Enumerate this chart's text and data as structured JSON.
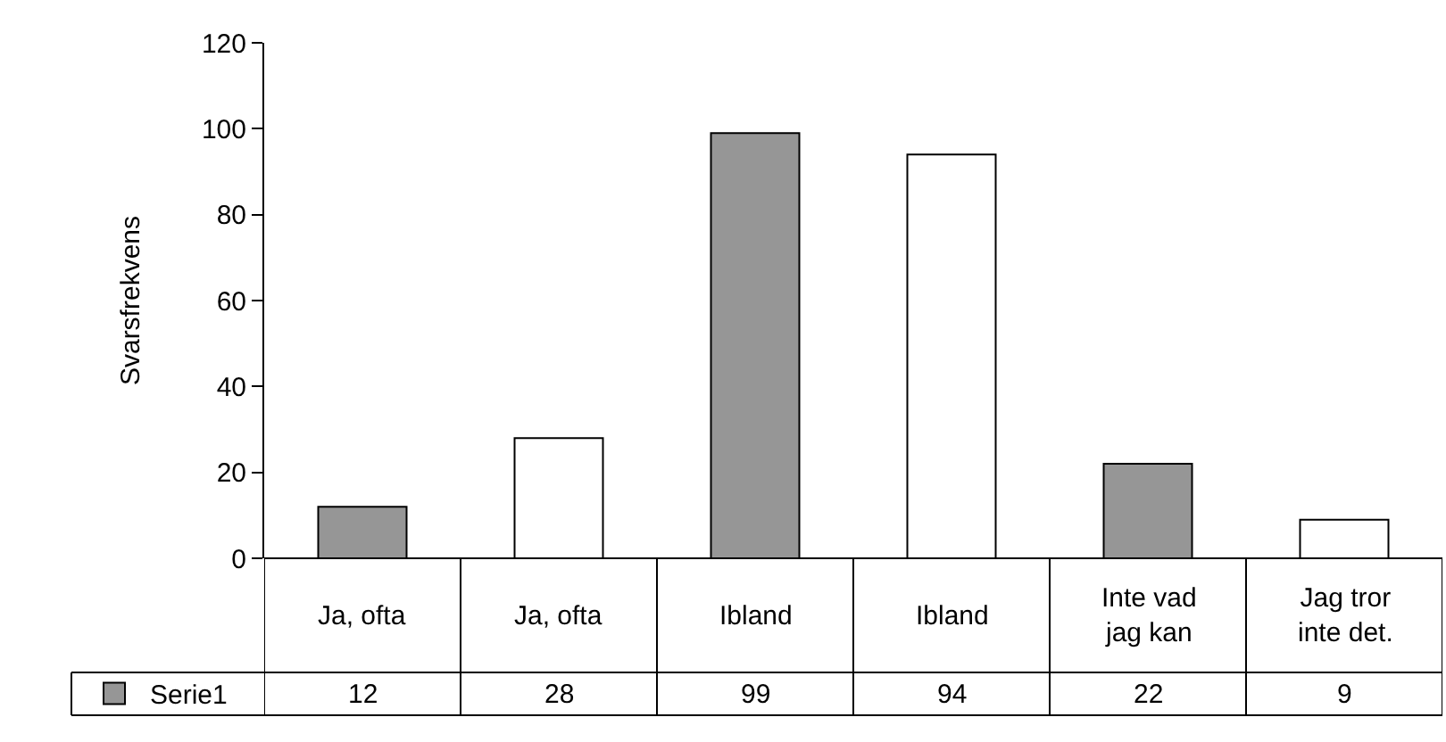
{
  "chart_data": {
    "type": "bar",
    "ylabel": "Svarsfrekvens",
    "categories": [
      "Ja, ofta",
      "Ja, ofta",
      "Ibland",
      "Ibland",
      "Inte vad jag kan",
      "Jag tror inte det."
    ],
    "series": [
      {
        "name": "Serie1",
        "colors": [
          "#969696",
          "#ffffff",
          "#969696",
          "#ffffff",
          "#969696",
          "#ffffff"
        ],
        "values": [
          12,
          28,
          99,
          94,
          22,
          9
        ]
      }
    ],
    "ylim": [
      0,
      120
    ],
    "yticks": [
      0,
      20,
      40,
      60,
      80,
      100,
      120
    ],
    "grid": false,
    "legend": "bottom left",
    "data_labels": true
  }
}
